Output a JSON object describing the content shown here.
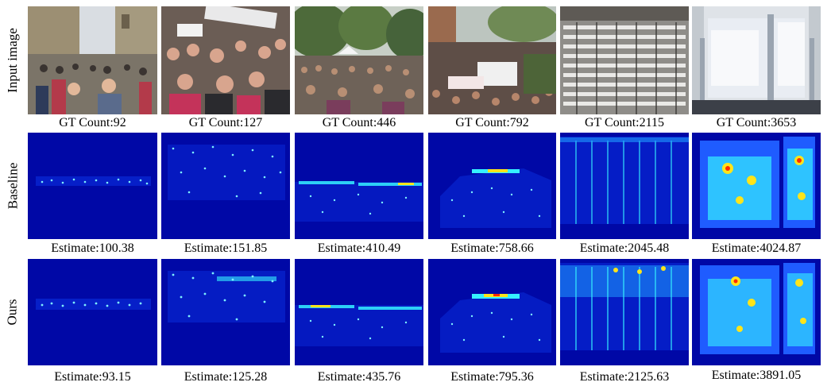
{
  "row_labels": {
    "input": "Input image",
    "baseline": "Baseline",
    "ours": "Ours"
  },
  "gt_counts": [
    "GT Count:92",
    "GT Count:127",
    "GT Count:446",
    "GT Count:792",
    "GT Count:2115",
    "GT Count:3653"
  ],
  "baseline_estimates": [
    "Estimate:100.38",
    "Estimate:151.85",
    "Estimate:410.49",
    "Estimate:758.66",
    "Estimate:2045.48",
    "Estimate:4024.87"
  ],
  "ours_estimates": [
    "Estimate:93.15",
    "Estimate:125.28",
    "Estimate:435.76",
    "Estimate:795.36",
    "Estimate:2125.63",
    "Estimate:3891.05"
  ],
  "colors": {
    "heatmap_background": "#0008a6",
    "heatmap_low": "#1f5cff",
    "heatmap_mid": "#35f0ff",
    "heatmap_high": "#ffe41a",
    "heatmap_peak": "#ff2a00"
  }
}
